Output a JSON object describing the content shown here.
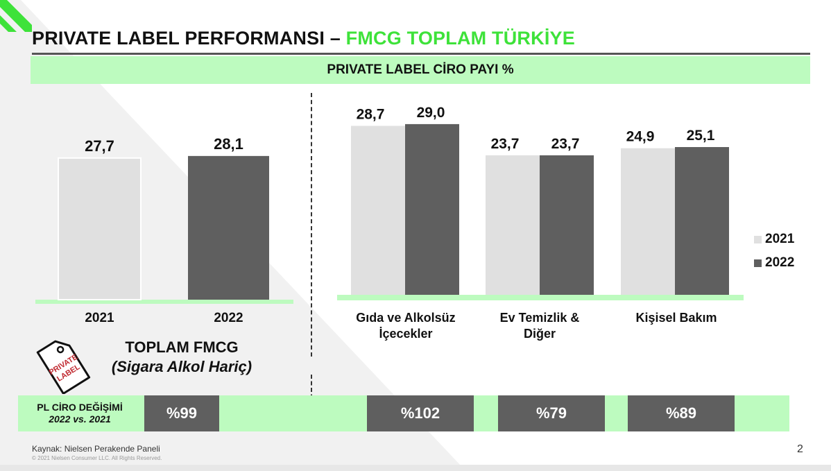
{
  "header": {
    "title_main": "PRIVATE LABEL PERFORMANSI – ",
    "title_accent": "FMCG TOPLAM TÜRKİYE",
    "subtitle": "PRIVATE LABEL CİRO PAYI %"
  },
  "colors": {
    "accent_green": "#3ee23a",
    "band_green": "#bdfbbf",
    "bar_2021": "#e0e0e0",
    "bar_2022": "#5f5f5f"
  },
  "chart_data": [
    {
      "type": "bar",
      "categories": [
        "2021",
        "2022"
      ],
      "values": [
        27.7,
        28.1
      ],
      "value_labels": [
        "27,7",
        "28,1"
      ],
      "ylim": [
        0,
        35
      ]
    },
    {
      "type": "bar",
      "categories": [
        "Gıda ve Alkolsüz İçecekler",
        "Ev Temizlik & Diğer",
        "Kişisel Bakım"
      ],
      "series": [
        {
          "name": "2021",
          "values": [
            28.7,
            23.7,
            24.9
          ],
          "value_labels": [
            "28,7",
            "23,7",
            "24,9"
          ]
        },
        {
          "name": "2022",
          "values": [
            29.0,
            23.7,
            25.1
          ],
          "value_labels": [
            "29,0",
            "23,7",
            "25,1"
          ]
        }
      ],
      "legend": "right",
      "ylim": [
        0,
        35
      ]
    }
  ],
  "categories": {
    "cat1_line1": "Gıda ve Alkolsüz",
    "cat1_line2": "İçecekler",
    "cat2_line1": "Ev Temizlik &",
    "cat2_line2": "Diğer",
    "cat3_line1": "Kişisel Bakım"
  },
  "legend": {
    "item1": "2021",
    "item2": "2022"
  },
  "total_fmcg": {
    "title": "TOPLAM FMCG",
    "subtitle": "(Sigara Alkol Hariç)",
    "tag_logo_text": "PRIVATE LABEL"
  },
  "change_row": {
    "label_line1": "PL CİRO DEĞİŞİMİ",
    "label_line2": "2022 vs. 2021",
    "total": "%99",
    "food": "%102",
    "home": "%79",
    "personal": "%89"
  },
  "footer": {
    "source": "Kaynak: Nielsen Perakende Paneli",
    "copyright": "© 2021 Nielsen Consumer LLC. All Rights Reserved.",
    "page_number": "2"
  }
}
